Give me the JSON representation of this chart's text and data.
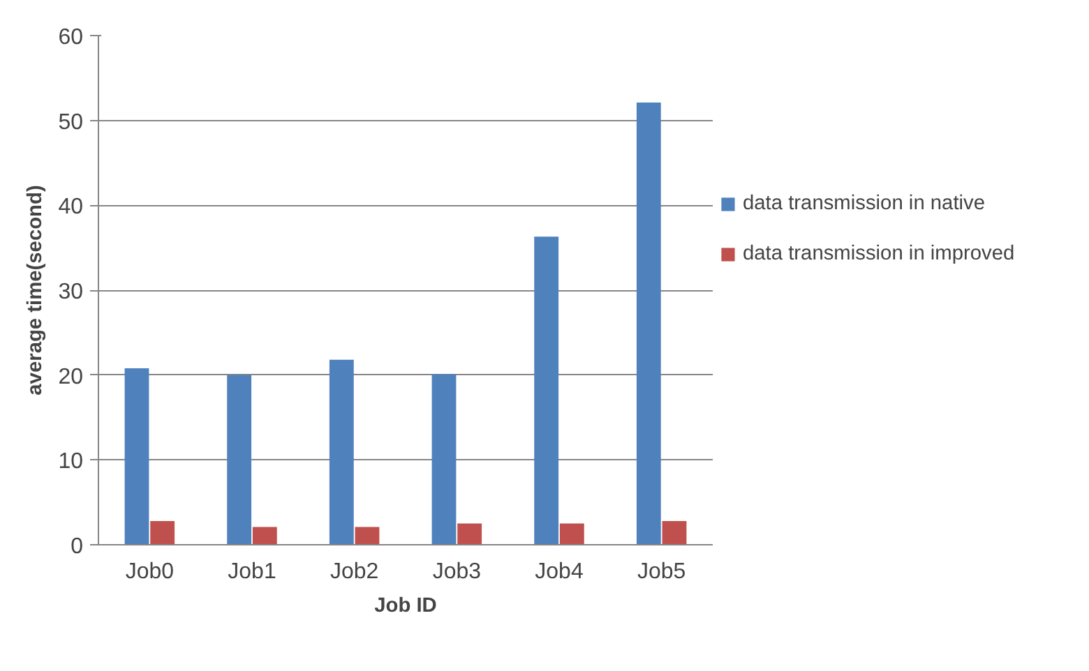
{
  "chart_data": {
    "type": "bar",
    "xlabel": "Job ID",
    "ylabel": "average time(second)",
    "categories": [
      "Job0",
      "Job1",
      "Job2",
      "Job3",
      "Job4",
      "Job5"
    ],
    "series": [
      {
        "name": "data transmission in native",
        "color": "#4f81bd",
        "values": [
          20.8,
          20.0,
          21.8,
          20.1,
          36.3,
          52.1
        ]
      },
      {
        "name": "data transmission in improved",
        "color": "#c0504d",
        "values": [
          2.8,
          2.1,
          2.1,
          2.5,
          2.5,
          2.8
        ]
      }
    ],
    "ylim": [
      0,
      60
    ],
    "yticks": [
      0,
      10,
      20,
      30,
      40,
      50,
      60
    ],
    "grid": "y",
    "legend": "right"
  }
}
